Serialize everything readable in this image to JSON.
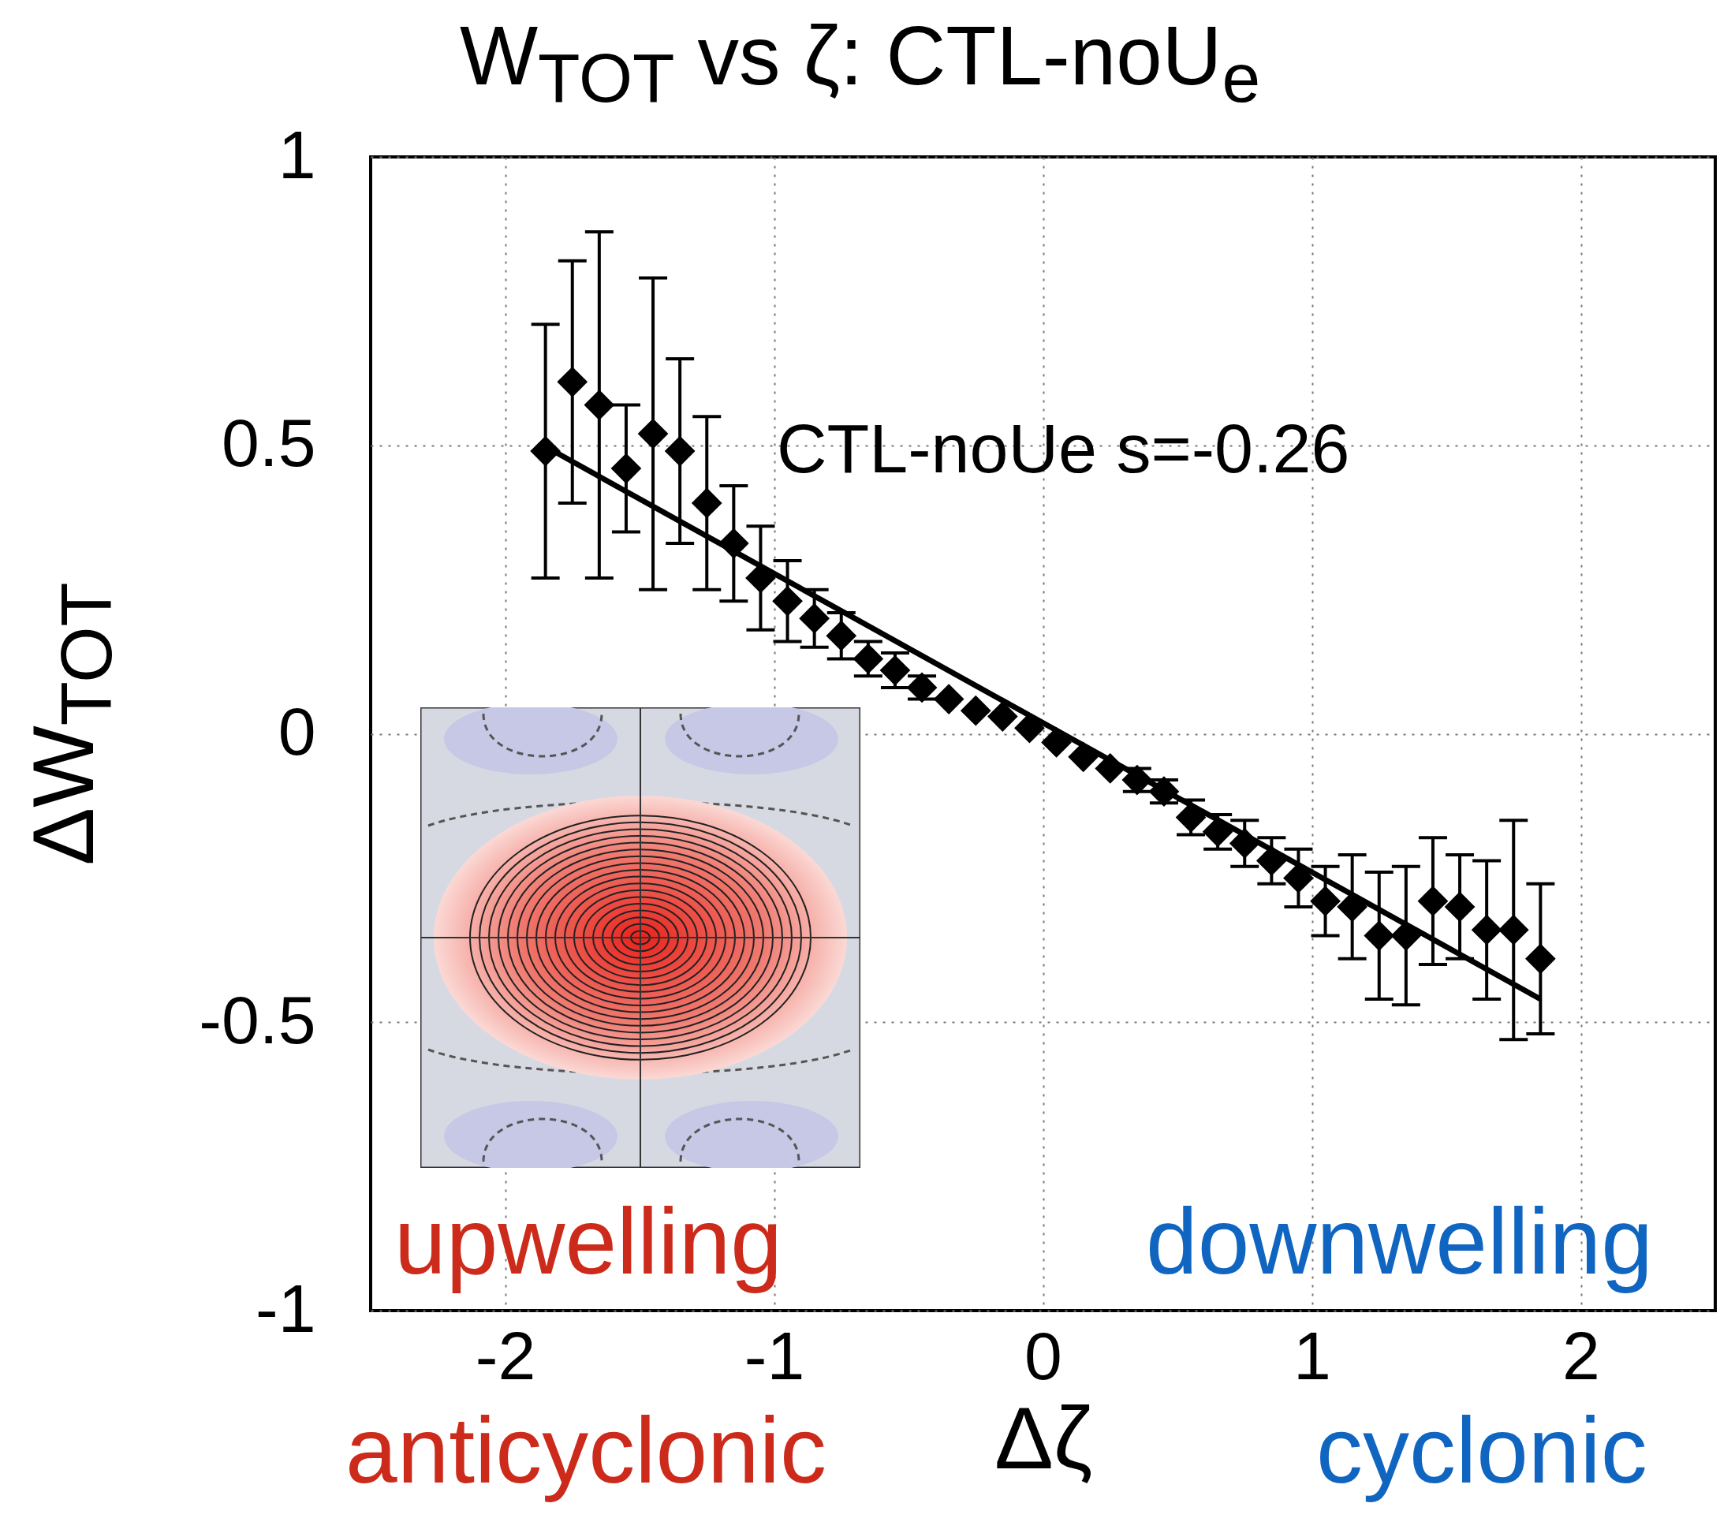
{
  "chart_data": {
    "type": "scatter",
    "title": "W$_{TOT}$ vs ζ: CTL-noU$_{e}$",
    "xlabel": "Δζ",
    "ylabel": "ΔW$_{TOT}$",
    "annotations": [
      "upwelling",
      "downwelling",
      "anticyclonic",
      "cyclonic"
    ],
    "x": [
      -1.85,
      -1.75,
      -1.65,
      -1.55,
      -1.45,
      -1.35,
      -1.25,
      -1.15,
      -1.05,
      -0.95,
      -0.85,
      -0.75,
      -0.65,
      -0.55,
      -0.45,
      -0.35,
      -0.25,
      -0.15,
      -0.05,
      0.05,
      0.15,
      0.25,
      0.35,
      0.45,
      0.55,
      0.65,
      0.75,
      0.85,
      0.95,
      1.05,
      1.15,
      1.25,
      1.35,
      1.45,
      1.55,
      1.65,
      1.75,
      1.85
    ],
    "series": [
      {
        "color": "#000000",
        "marker": "diamond",
        "values": [
          0.49,
          0.61,
          0.57,
          0.46,
          0.52,
          0.49,
          0.4,
          0.33,
          0.27,
          0.23,
          0.2,
          0.17,
          0.13,
          0.11,
          0.08,
          0.06,
          0.04,
          0.03,
          0.01,
          -0.015,
          -0.04,
          -0.06,
          -0.08,
          -0.1,
          -0.145,
          -0.17,
          -0.19,
          -0.22,
          -0.25,
          -0.29,
          -0.3,
          -0.35,
          -0.35,
          -0.29,
          -0.3,
          -0.34,
          -0.34,
          -0.39
        ],
        "errors": [
          0.22,
          0.21,
          0.3,
          0.11,
          0.27,
          0.16,
          0.15,
          0.1,
          0.09,
          0.07,
          0.05,
          0.04,
          0.03,
          0.03,
          0.02,
          null,
          null,
          null,
          null,
          null,
          null,
          null,
          0.02,
          0.02,
          0.03,
          0.03,
          0.04,
          0.04,
          0.05,
          0.06,
          0.09,
          0.11,
          0.12,
          0.11,
          0.09,
          0.12,
          0.19,
          0.13
        ]
      },
      {
        "type": "line",
        "name": "CTL-noUe s=-0.26",
        "color": "#000000",
        "x": [
          -1.82,
          1.85
        ],
        "values": [
          0.49,
          -0.46
        ]
      }
    ],
    "xlim": [
      -2.5,
      2.5
    ],
    "ylim": [
      -1,
      1
    ],
    "xticks": [
      -2,
      -1,
      0,
      1,
      2
    ],
    "yticks": [
      -1,
      -0.5,
      0,
      0.5,
      1
    ],
    "grid": true,
    "line_style": "solid"
  }
}
